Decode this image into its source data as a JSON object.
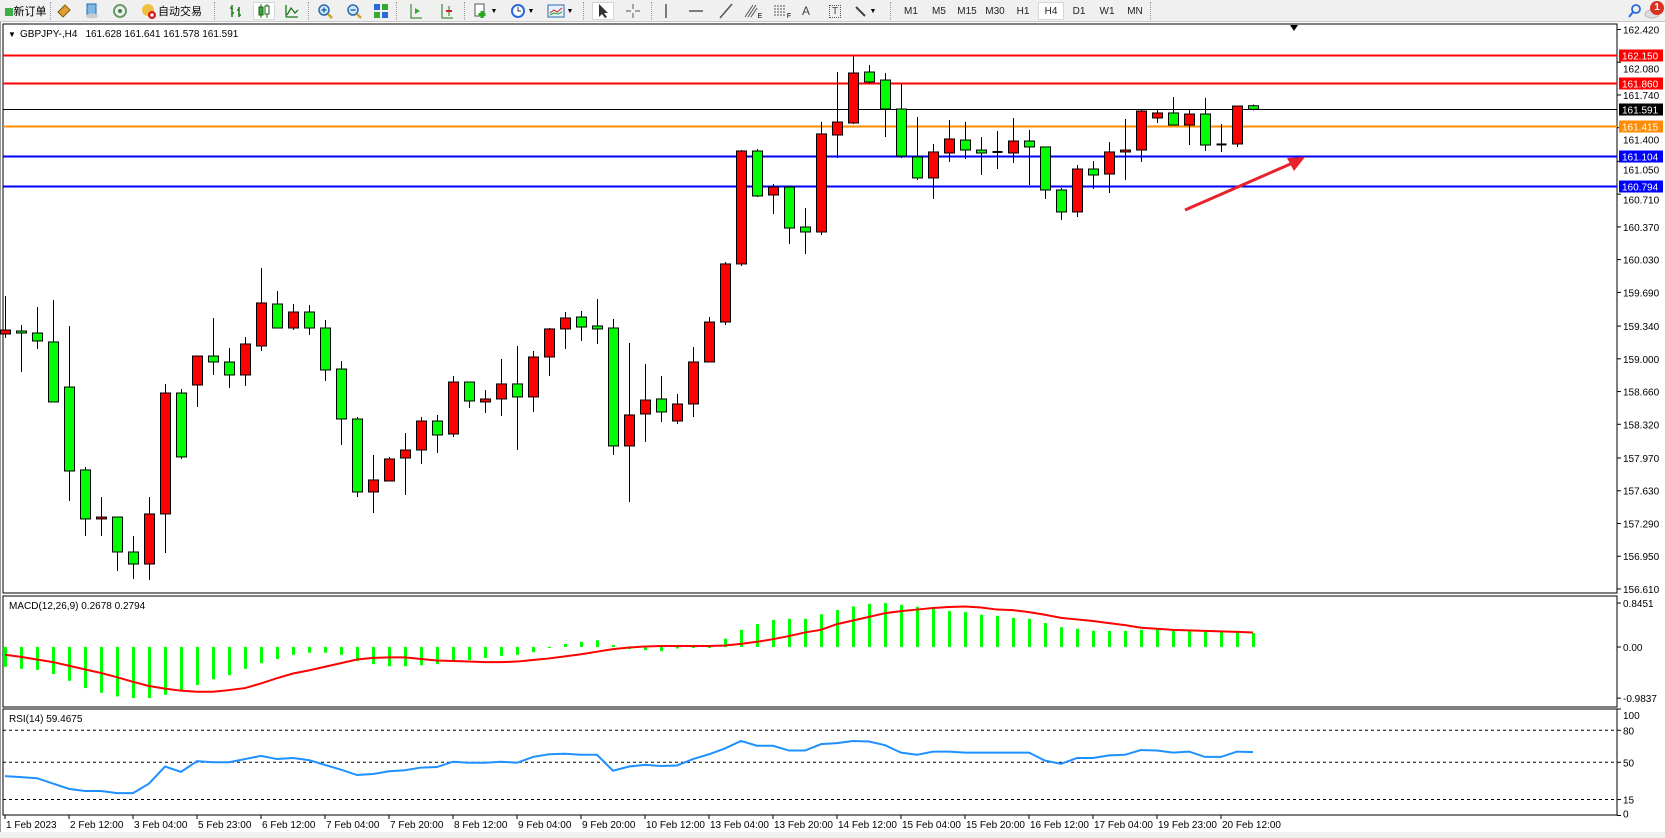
{
  "toolbar": {
    "new_order_label": "新订单",
    "auto_trading_label": "自动交易",
    "icons": [
      "new-order-icon",
      "navigator-icon",
      "market-watch-icon",
      "signals-icon",
      "auto-trading-icon",
      "bar-chart-icon",
      "candlestick-icon",
      "line-chart-icon",
      "zoom-in-icon",
      "zoom-out-icon",
      "tile-windows-icon",
      "chart-shift-icon",
      "auto-scroll-icon",
      "indicators-icon",
      "periods-icon",
      "templates-icon",
      "cursor-icon",
      "crosshair-icon",
      "vertical-line-icon",
      "horizontal-line-icon",
      "trendline-icon",
      "fibonacci-e-icon",
      "fibonacci-f-icon",
      "text-icon",
      "text-label-icon",
      "arrows-icon",
      "search-icon",
      "notifications-icon"
    ],
    "fib_e": "E",
    "fib_f": "F",
    "text_a": "A",
    "text_t": "T",
    "timeframes": [
      "M1",
      "M5",
      "M15",
      "M30",
      "H1",
      "H4",
      "D1",
      "W1",
      "MN"
    ],
    "active_timeframe": "H4",
    "notification_count": "1"
  },
  "chart_header": {
    "symbol": "GBPJPY-,H4",
    "ohlc": "161.628 161.641 161.578 161.591"
  },
  "colors": {
    "bull": "#ff0000",
    "bear": "#00ff00",
    "macd_hist": "#00ff00",
    "macd_signal": "#ff0000",
    "rsi": "#1e90ff",
    "arrow": "#e8222c"
  },
  "chart_data": [
    {
      "type": "candlestick",
      "symbol": "GBPJPY-",
      "timeframe": "H4",
      "ylim": [
        156.61,
        162.42
      ],
      "y_ticks": [
        "162.420",
        "162.080",
        "161.740",
        "161.400",
        "161.050",
        "160.710",
        "160.370",
        "160.030",
        "159.690",
        "159.340",
        "159.000",
        "158.660",
        "158.320",
        "157.970",
        "157.630",
        "157.290",
        "156.950",
        "156.610"
      ],
      "x_tick_labels": [
        "1 Feb 2023",
        "2 Feb 12:00",
        "3 Feb 04:00",
        "5 Feb 23:00",
        "6 Feb 12:00",
        "7 Feb 04:00",
        "7 Feb 20:00",
        "8 Feb 12:00",
        "9 Feb 04:00",
        "9 Feb 20:00",
        "10 Feb 12:00",
        "13 Feb 04:00",
        "13 Feb 20:00",
        "14 Feb 12:00",
        "15 Feb 04:00",
        "15 Feb 20:00",
        "16 Feb 12:00",
        "17 Feb 04:00",
        "19 Feb 23:00",
        "20 Feb 12:00"
      ],
      "ohlc": [
        [
          159.258,
          159.652,
          159.216,
          159.299
        ],
        [
          159.289,
          159.351,
          158.863,
          159.268
        ],
        [
          159.268,
          159.538,
          159.102,
          159.185
        ],
        [
          159.175,
          159.611,
          158.552,
          158.552
        ],
        [
          158.707,
          159.341,
          157.524,
          157.835
        ],
        [
          157.846,
          157.877,
          157.16,
          157.337
        ],
        [
          157.337,
          157.565,
          157.16,
          157.357
        ],
        [
          157.357,
          157.357,
          156.797,
          156.994
        ],
        [
          156.994,
          157.16,
          156.714,
          156.869
        ],
        [
          156.869,
          157.565,
          156.704,
          157.389
        ],
        [
          157.389,
          158.739,
          156.984,
          158.645
        ],
        [
          158.645,
          158.687,
          157.96,
          157.981
        ],
        [
          158.728,
          159.029,
          158.5,
          159.029
        ],
        [
          159.029,
          159.424,
          158.832,
          158.967
        ],
        [
          158.967,
          159.112,
          158.697,
          158.832
        ],
        [
          158.832,
          159.227,
          158.718,
          159.154
        ],
        [
          159.133,
          159.943,
          159.081,
          159.58
        ],
        [
          159.569,
          159.704,
          159.32,
          159.32
        ],
        [
          159.32,
          159.569,
          159.299,
          159.486
        ],
        [
          159.486,
          159.559,
          159.247,
          159.32
        ],
        [
          159.32,
          159.403,
          158.77,
          158.884
        ],
        [
          158.894,
          158.977,
          158.105,
          158.375
        ],
        [
          158.375,
          158.396,
          157.565,
          157.617
        ],
        [
          157.617,
          158.001,
          157.399,
          157.742
        ],
        [
          157.731,
          157.981,
          157.731,
          157.96
        ],
        [
          157.97,
          158.23,
          157.586,
          158.053
        ],
        [
          158.053,
          158.396,
          157.908,
          158.354
        ],
        [
          158.354,
          158.417,
          158.022,
          158.209
        ],
        [
          158.219,
          158.822,
          158.188,
          158.759
        ],
        [
          158.759,
          158.759,
          158.489,
          158.562
        ],
        [
          158.552,
          158.676,
          158.437,
          158.583
        ],
        [
          158.583,
          158.998,
          158.406,
          158.739
        ],
        [
          158.739,
          159.133,
          158.053,
          158.604
        ],
        [
          158.604,
          159.081,
          158.448,
          159.019
        ],
        [
          159.019,
          159.32,
          158.822,
          159.31
        ],
        [
          159.31,
          159.486,
          159.102,
          159.424
        ],
        [
          159.434,
          159.497,
          159.185,
          159.33
        ],
        [
          159.341,
          159.621,
          159.154,
          159.31
        ],
        [
          159.32,
          159.414,
          158.001,
          158.095
        ],
        [
          158.095,
          159.164,
          157.513,
          158.417
        ],
        [
          158.427,
          158.946,
          158.136,
          158.572
        ],
        [
          158.583,
          158.822,
          158.344,
          158.448
        ],
        [
          158.354,
          158.635,
          158.323,
          158.531
        ],
        [
          158.531,
          159.123,
          158.396,
          158.967
        ],
        [
          158.967,
          159.434,
          158.967,
          159.382
        ],
        [
          159.382,
          160.005,
          159.351,
          159.985
        ],
        [
          159.985,
          161.168,
          159.964,
          161.158
        ],
        [
          161.158,
          161.179,
          160.68,
          160.691
        ],
        [
          160.701,
          160.815,
          160.504,
          160.784
        ],
        [
          160.784,
          160.784,
          160.192,
          160.358
        ],
        [
          160.369,
          160.566,
          160.088,
          160.317
        ],
        [
          160.317,
          161.459,
          160.286,
          161.335
        ],
        [
          161.324,
          161.978,
          161.085,
          161.459
        ],
        [
          161.449,
          162.145,
          161.438,
          161.968
        ],
        [
          161.978,
          162.051,
          161.854,
          161.875
        ],
        [
          161.895,
          161.968,
          161.303,
          161.594
        ],
        [
          161.594,
          161.854,
          161.085,
          161.106
        ],
        [
          161.096,
          161.511,
          160.857,
          160.878
        ],
        [
          160.878,
          161.231,
          160.66,
          161.148
        ],
        [
          161.137,
          161.48,
          161.044,
          161.283
        ],
        [
          161.272,
          161.459,
          161.075,
          161.168
        ],
        [
          161.168,
          161.303,
          160.909,
          161.137
        ],
        [
          161.148,
          161.366,
          160.971,
          161.137
        ],
        [
          161.137,
          161.501,
          161.033,
          161.262
        ],
        [
          161.262,
          161.376,
          160.805,
          161.2
        ],
        [
          161.2,
          161.2,
          160.66,
          160.753
        ],
        [
          160.753,
          160.774,
          160.442,
          160.525
        ],
        [
          160.525,
          161.013,
          160.473,
          160.971
        ],
        [
          160.971,
          161.054,
          160.763,
          160.909
        ],
        [
          160.919,
          161.251,
          160.722,
          161.148
        ],
        [
          161.148,
          161.49,
          160.857,
          161.168
        ],
        [
          161.168,
          161.584,
          161.044,
          161.573
        ],
        [
          161.501,
          161.584,
          161.449,
          161.553
        ],
        [
          161.553,
          161.719,
          161.428,
          161.428
        ],
        [
          161.428,
          161.584,
          161.22,
          161.542
        ],
        [
          161.542,
          161.709,
          161.158,
          161.22
        ],
        [
          161.226,
          161.438,
          161.148,
          161.226
        ],
        [
          161.231,
          161.625,
          161.2,
          161.625
        ],
        [
          161.628,
          161.641,
          161.578,
          161.591
        ]
      ],
      "horizontal_lines": [
        {
          "price": "162.150",
          "color": "#ff0000"
        },
        {
          "price": "161.860",
          "color": "#ff0000"
        },
        {
          "price": "161.591",
          "color": "#000000"
        },
        {
          "price": "161.415",
          "color": "#ff8c00"
        },
        {
          "price": "161.104",
          "color": "#0000ff"
        },
        {
          "price": "160.794",
          "color": "#0000ff"
        }
      ]
    },
    {
      "type": "bar+line",
      "label": "MACD(12,26,9) 0.2678 0.2794",
      "ylim": [
        -0.9837,
        0.8451
      ],
      "y_ticks": [
        "0.8451",
        "0.00",
        "-0.9837"
      ],
      "histogram": [
        -0.38,
        -0.42,
        -0.44,
        -0.52,
        -0.65,
        -0.79,
        -0.88,
        -0.95,
        -0.98,
        -0.98,
        -0.92,
        -0.83,
        -0.73,
        -0.62,
        -0.54,
        -0.42,
        -0.31,
        -0.23,
        -0.15,
        -0.11,
        -0.11,
        -0.15,
        -0.27,
        -0.33,
        -0.37,
        -0.37,
        -0.35,
        -0.33,
        -0.25,
        -0.25,
        -0.21,
        -0.17,
        -0.15,
        -0.1,
        -0.01,
        0.06,
        0.1,
        0.13,
        0.04,
        -0.04,
        -0.06,
        -0.08,
        -0.03,
        0.0,
        0.0,
        0.16,
        0.33,
        0.44,
        0.52,
        0.54,
        0.54,
        0.63,
        0.71,
        0.78,
        0.83,
        0.845,
        0.81,
        0.77,
        0.73,
        0.69,
        0.67,
        0.62,
        0.6,
        0.56,
        0.54,
        0.46,
        0.38,
        0.35,
        0.31,
        0.31,
        0.31,
        0.33,
        0.35,
        0.33,
        0.31,
        0.31,
        0.29,
        0.31,
        0.2678
      ],
      "signal": [
        -0.15,
        -0.19,
        -0.24,
        -0.29,
        -0.36,
        -0.43,
        -0.5,
        -0.58,
        -0.67,
        -0.75,
        -0.8,
        -0.84,
        -0.86,
        -0.86,
        -0.83,
        -0.79,
        -0.7,
        -0.6,
        -0.51,
        -0.45,
        -0.38,
        -0.31,
        -0.24,
        -0.21,
        -0.2,
        -0.2,
        -0.23,
        -0.26,
        -0.27,
        -0.28,
        -0.29,
        -0.29,
        -0.28,
        -0.25,
        -0.22,
        -0.18,
        -0.14,
        -0.09,
        -0.04,
        -0.01,
        0.01,
        0.02,
        0.02,
        0.02,
        0.02,
        0.03,
        0.06,
        0.1,
        0.15,
        0.21,
        0.28,
        0.33,
        0.44,
        0.51,
        0.58,
        0.65,
        0.69,
        0.72,
        0.75,
        0.77,
        0.78,
        0.76,
        0.72,
        0.71,
        0.67,
        0.62,
        0.56,
        0.53,
        0.5,
        0.46,
        0.42,
        0.37,
        0.35,
        0.33,
        0.32,
        0.31,
        0.3,
        0.29,
        0.2794
      ]
    },
    {
      "type": "line",
      "label": "RSI(14) 59.4675",
      "ylim": [
        0,
        100
      ],
      "y_ticks": [
        "100",
        "80",
        "50",
        "15",
        "0"
      ],
      "levels": [
        80,
        50,
        15
      ],
      "values": [
        37,
        36,
        35,
        30,
        25,
        23,
        23,
        21,
        21,
        30,
        46,
        41,
        51,
        50,
        50,
        53,
        56,
        53,
        54,
        52,
        47.5,
        43,
        38,
        39,
        41.5,
        42.5,
        45,
        45.5,
        50.5,
        49.5,
        49.5,
        50.5,
        49.5,
        55,
        57.5,
        58,
        57,
        57,
        42,
        46,
        47.5,
        46.5,
        47,
        53,
        57.5,
        63,
        70,
        65.5,
        65.5,
        61,
        61,
        67,
        68,
        70,
        69.5,
        66,
        59,
        57,
        60,
        60,
        59,
        59,
        59,
        59,
        59,
        51.5,
        48.5,
        54,
        54,
        56.5,
        57,
        61.5,
        61,
        59,
        60,
        55,
        55,
        60,
        59.4675
      ]
    }
  ]
}
